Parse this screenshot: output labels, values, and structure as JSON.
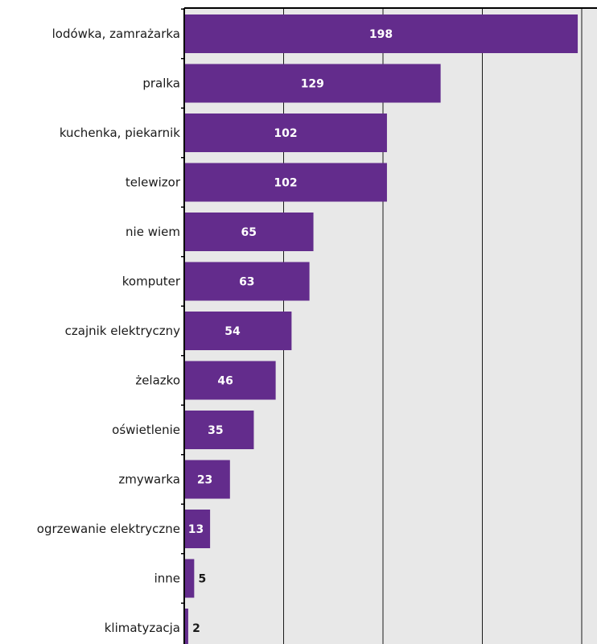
{
  "chart_data": {
    "type": "bar",
    "orientation": "horizontal",
    "categories": [
      "lodówka, zamrażarka",
      "pralka",
      "kuchenka, piekarnik",
      "telewizor",
      "nie wiem",
      "komputer",
      "czajnik elektryczny",
      "żelazko",
      "oświetlenie",
      "zmywarka",
      "ogrzewanie elektryczne",
      "inne",
      "klimatyzacja"
    ],
    "values": [
      198,
      129,
      102,
      102,
      65,
      63,
      54,
      46,
      35,
      23,
      13,
      5,
      2
    ],
    "value_labels": [
      "198",
      "129",
      "102",
      "102",
      "65",
      "63",
      "54",
      "46",
      "35",
      "23",
      "13",
      "5",
      "2"
    ],
    "title": "",
    "xlabel": "",
    "ylabel": "",
    "xlim": [
      0,
      200
    ],
    "grid": true,
    "legend": "none",
    "colors": {
      "bar": "#632c8c",
      "plot_background": "#e8e8e8",
      "gridline": "#1a1a1a",
      "value_text_inside": "#ffffff",
      "value_text_outside": "#1a1a1a"
    }
  }
}
